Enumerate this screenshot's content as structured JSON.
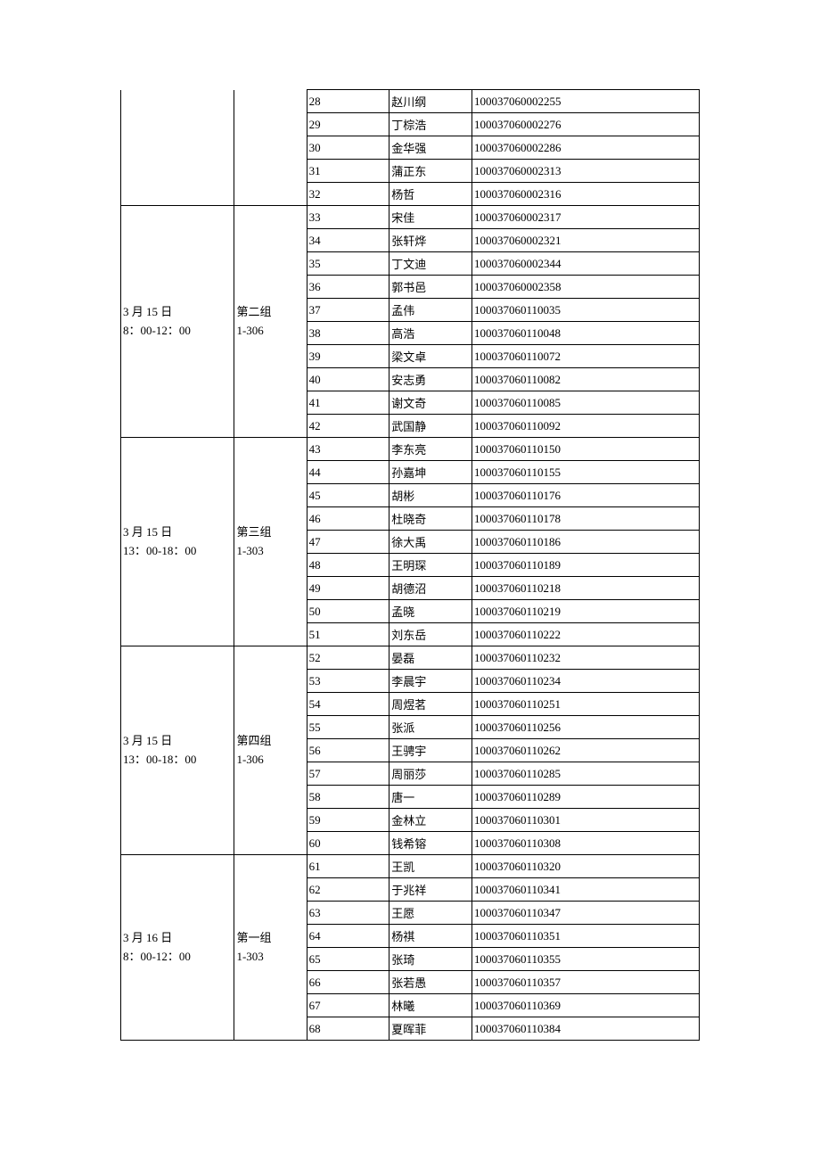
{
  "colors": {
    "border": "#000000",
    "background": "#ffffff",
    "text": "#000000"
  },
  "typography": {
    "fontFamily": "SimSun",
    "fontSize": 13
  },
  "columns": {
    "widths": [
      110,
      70,
      80,
      80,
      220
    ]
  },
  "groups": [
    {
      "dateLine1": "",
      "dateLine2": "",
      "groupLine1": "",
      "groupLine2": "",
      "continuation": true,
      "rows": [
        {
          "num": "28",
          "name": "赵川纲",
          "id": "100037060002255"
        },
        {
          "num": "29",
          "name": "丁棕浩",
          "id": "100037060002276"
        },
        {
          "num": "30",
          "name": "金华强",
          "id": "100037060002286"
        },
        {
          "num": "31",
          "name": "蒲正东",
          "id": "100037060002313"
        },
        {
          "num": "32",
          "name": "杨哲",
          "id": "100037060002316"
        }
      ]
    },
    {
      "dateLine1": "3 月 15 日",
      "dateLine2": "8：00-12：00",
      "groupLine1": "第二组",
      "groupLine2": "1-306",
      "continuation": false,
      "rows": [
        {
          "num": "33",
          "name": "宋佳",
          "id": "100037060002317"
        },
        {
          "num": "34",
          "name": "张轩烨",
          "id": "100037060002321"
        },
        {
          "num": "35",
          "name": "丁文迪",
          "id": "100037060002344"
        },
        {
          "num": "36",
          "name": "郭书邑",
          "id": "100037060002358"
        },
        {
          "num": "37",
          "name": "孟伟",
          "id": "100037060110035"
        },
        {
          "num": "38",
          "name": "高浩",
          "id": "100037060110048"
        },
        {
          "num": "39",
          "name": "梁文卓",
          "id": "100037060110072"
        },
        {
          "num": "40",
          "name": "安志勇",
          "id": "100037060110082"
        },
        {
          "num": "41",
          "name": "谢文奇",
          "id": "100037060110085"
        },
        {
          "num": "42",
          "name": "武国静",
          "id": "100037060110092"
        }
      ]
    },
    {
      "dateLine1": "3 月 15 日",
      "dateLine2": "13：00-18：00",
      "groupLine1": "第三组",
      "groupLine2": "1-303",
      "continuation": false,
      "rows": [
        {
          "num": "43",
          "name": "李东亮",
          "id": "100037060110150"
        },
        {
          "num": "44",
          "name": "孙嘉坤",
          "id": "100037060110155"
        },
        {
          "num": "45",
          "name": "胡彬",
          "id": "100037060110176"
        },
        {
          "num": "46",
          "name": "杜晓奇",
          "id": "100037060110178"
        },
        {
          "num": "47",
          "name": "徐大禹",
          "id": "100037060110186"
        },
        {
          "num": "48",
          "name": "王明琛",
          "id": "100037060110189"
        },
        {
          "num": "49",
          "name": "胡德沼",
          "id": "100037060110218"
        },
        {
          "num": "50",
          "name": "孟晓",
          "id": "100037060110219"
        },
        {
          "num": "51",
          "name": "刘东岳",
          "id": "100037060110222"
        }
      ]
    },
    {
      "dateLine1": "3 月 15 日",
      "dateLine2": "13：00-18：00",
      "groupLine1": "第四组",
      "groupLine2": "1-306",
      "continuation": false,
      "rows": [
        {
          "num": "52",
          "name": "晏磊",
          "id": "100037060110232"
        },
        {
          "num": "53",
          "name": "李晨宇",
          "id": "100037060110234"
        },
        {
          "num": "54",
          "name": "周煜茗",
          "id": "100037060110251"
        },
        {
          "num": "55",
          "name": "张派",
          "id": "100037060110256"
        },
        {
          "num": "56",
          "name": "王骋宇",
          "id": "100037060110262"
        },
        {
          "num": "57",
          "name": "周丽莎",
          "id": "100037060110285"
        },
        {
          "num": "58",
          "name": "唐一",
          "id": "100037060110289"
        },
        {
          "num": "59",
          "name": "金林立",
          "id": "100037060110301"
        },
        {
          "num": "60",
          "name": "钱希镕",
          "id": "100037060110308"
        }
      ]
    },
    {
      "dateLine1": "3 月 16 日",
      "dateLine2": "8：00-12：00",
      "groupLine1": "第一组",
      "groupLine2": "1-303",
      "continuation": false,
      "rows": [
        {
          "num": "61",
          "name": "王凯",
          "id": "100037060110320"
        },
        {
          "num": "62",
          "name": "于兆祥",
          "id": "100037060110341"
        },
        {
          "num": "63",
          "name": "王愿",
          "id": "100037060110347"
        },
        {
          "num": "64",
          "name": "杨祺",
          "id": "100037060110351"
        },
        {
          "num": "65",
          "name": "张琦",
          "id": "100037060110355"
        },
        {
          "num": "66",
          "name": "张若愚",
          "id": "100037060110357"
        },
        {
          "num": "67",
          "name": "林曦",
          "id": "100037060110369"
        },
        {
          "num": "68",
          "name": "夏晖菲",
          "id": "100037060110384"
        }
      ]
    }
  ]
}
